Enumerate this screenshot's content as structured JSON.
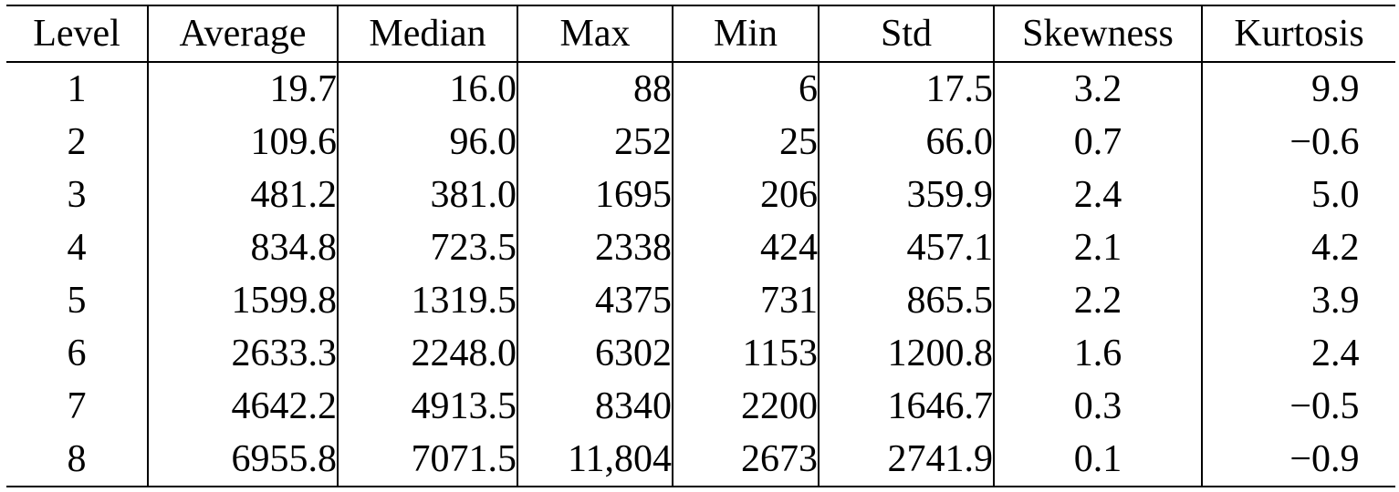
{
  "table": {
    "headers": [
      "Level",
      "Average",
      "Median",
      "Max",
      "Min",
      "Std",
      "Skewness",
      "Kurtosis"
    ],
    "rows": [
      [
        "1",
        "19.7",
        "16.0",
        "88",
        "6",
        "17.5",
        "3.2",
        "9.9"
      ],
      [
        "2",
        "109.6",
        "96.0",
        "252",
        "25",
        "66.0",
        "0.7",
        "−0.6"
      ],
      [
        "3",
        "481.2",
        "381.0",
        "1695",
        "206",
        "359.9",
        "2.4",
        "5.0"
      ],
      [
        "4",
        "834.8",
        "723.5",
        "2338",
        "424",
        "457.1",
        "2.1",
        "4.2"
      ],
      [
        "5",
        "1599.8",
        "1319.5",
        "4375",
        "731",
        "865.5",
        "2.2",
        "3.9"
      ],
      [
        "6",
        "2633.3",
        "2248.0",
        "6302",
        "1153",
        "1200.8",
        "1.6",
        "2.4"
      ],
      [
        "7",
        "4642.2",
        "4913.5",
        "8340",
        "2200",
        "1646.7",
        "0.3",
        "−0.5"
      ],
      [
        "8",
        "6955.8",
        "7071.5",
        "11,804",
        "2673",
        "2741.9",
        "0.1",
        "−0.9"
      ]
    ]
  }
}
